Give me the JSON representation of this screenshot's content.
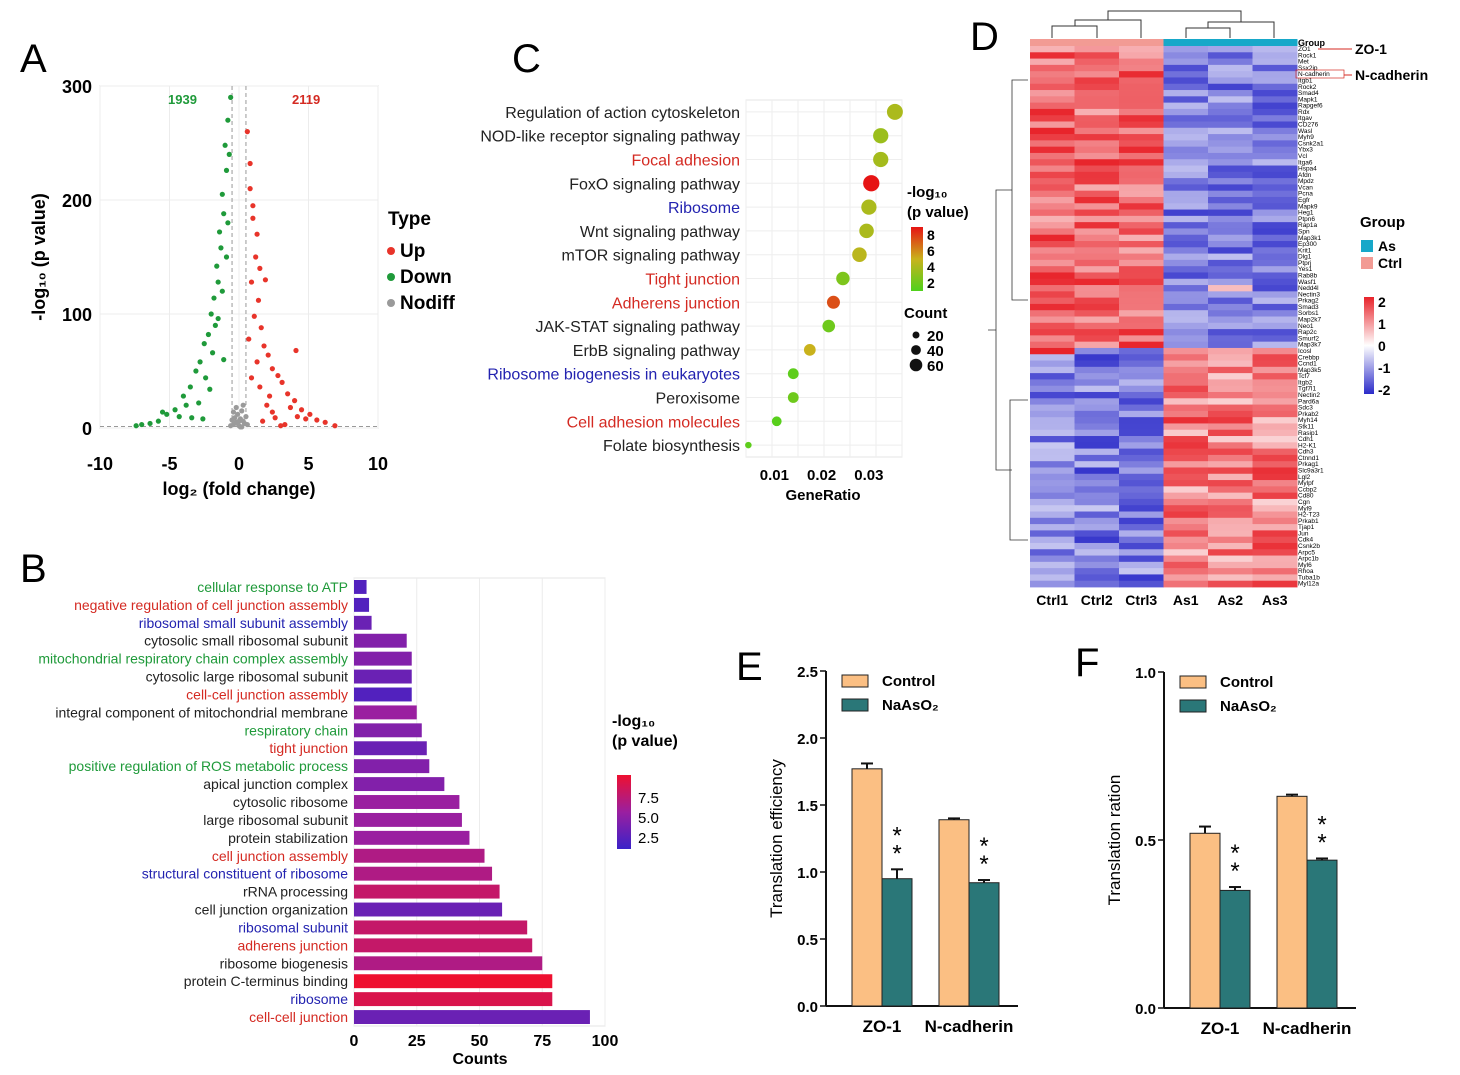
{
  "panels": {
    "A": "A",
    "B": "B",
    "C": "C",
    "D": "D",
    "E": "E",
    "F": "F"
  },
  "chart_data": [
    {
      "id": "A",
      "type": "scatter",
      "xlabel": "log₂ (fold change)",
      "ylabel": "-log₁₀ (p value)",
      "xlim": [
        -10,
        10
      ],
      "ylim": [
        0,
        300
      ],
      "xticks": [
        -10,
        -5,
        0,
        5,
        10
      ],
      "yticks": [
        0,
        100,
        200,
        300
      ],
      "count_labels": {
        "down": "1939",
        "up": "2119"
      },
      "legend": {
        "title": "Type",
        "items": [
          {
            "label": "Up",
            "color": "#e8342a"
          },
          {
            "label": "Down",
            "color": "#1f9a3a"
          },
          {
            "label": "Nodiff",
            "color": "#9a9a9a"
          }
        ]
      },
      "series": [
        {
          "name": "Up",
          "points": [
            [
              0.6,
              260
            ],
            [
              0.8,
              232
            ],
            [
              1.0,
              184
            ],
            [
              1.2,
              150
            ],
            [
              0.9,
              128
            ],
            [
              1.4,
              112
            ],
            [
              1.1,
              98
            ],
            [
              1.6,
              88
            ],
            [
              0.7,
              78
            ],
            [
              1.8,
              72
            ],
            [
              2.1,
              64
            ],
            [
              1.3,
              58
            ],
            [
              2.4,
              52
            ],
            [
              2.8,
              46
            ],
            [
              3.1,
              40
            ],
            [
              1.5,
              36
            ],
            [
              3.5,
              30
            ],
            [
              4.0,
              24
            ],
            [
              2.0,
              20
            ],
            [
              4.5,
              16
            ],
            [
              5.1,
              12
            ],
            [
              2.6,
              9
            ],
            [
              5.6,
              7
            ],
            [
              6.2,
              5
            ],
            [
              3.3,
              3
            ],
            [
              6.9,
              2
            ],
            [
              1.7,
              6
            ],
            [
              4.2,
              10
            ],
            [
              2.2,
              28
            ],
            [
              0.9,
              44
            ],
            [
              1.3,
              170
            ],
            [
              1.9,
              130
            ],
            [
              3.7,
              18
            ],
            [
              4.8,
              8
            ],
            [
              0.8,
              210
            ],
            [
              1.0,
              195
            ],
            [
              1.5,
              140
            ],
            [
              4.1,
              68
            ],
            [
              3.0,
              2
            ],
            [
              2.4,
              14
            ]
          ]
        },
        {
          "name": "Down",
          "points": [
            [
              -0.6,
              290
            ],
            [
              -0.8,
              270
            ],
            [
              -1.0,
              248
            ],
            [
              -0.9,
              226
            ],
            [
              -1.2,
              205
            ],
            [
              -1.1,
              188
            ],
            [
              -1.4,
              172
            ],
            [
              -1.3,
              158
            ],
            [
              -1.6,
              142
            ],
            [
              -1.5,
              128
            ],
            [
              -1.8,
              114
            ],
            [
              -2.0,
              100
            ],
            [
              -1.7,
              90
            ],
            [
              -2.2,
              82
            ],
            [
              -2.5,
              74
            ],
            [
              -1.9,
              66
            ],
            [
              -2.8,
              58
            ],
            [
              -3.1,
              50
            ],
            [
              -2.4,
              44
            ],
            [
              -3.5,
              36
            ],
            [
              -4.0,
              28
            ],
            [
              -2.9,
              22
            ],
            [
              -4.6,
              16
            ],
            [
              -5.2,
              12
            ],
            [
              -3.4,
              9
            ],
            [
              -5.8,
              6
            ],
            [
              -6.4,
              4
            ],
            [
              -7.0,
              3
            ],
            [
              -7.4,
              2
            ],
            [
              -2.1,
              34
            ],
            [
              -1.1,
              60
            ],
            [
              -0.9,
              150
            ],
            [
              -1.5,
              96
            ],
            [
              -0.7,
              240
            ],
            [
              -4.3,
              10
            ],
            [
              -3.8,
              20
            ],
            [
              -2.6,
              8
            ],
            [
              -1.2,
              120
            ],
            [
              -0.8,
              180
            ],
            [
              -5.5,
              14
            ]
          ]
        },
        {
          "name": "Nodiff",
          "points": [
            [
              -0.2,
              5
            ],
            [
              0.1,
              8
            ],
            [
              -0.4,
              3
            ],
            [
              0.3,
              6
            ],
            [
              0.0,
              2
            ],
            [
              -0.1,
              12
            ],
            [
              0.2,
              15
            ],
            [
              -0.3,
              9
            ],
            [
              0.4,
              4
            ],
            [
              -0.5,
              7
            ],
            [
              0.5,
              10
            ],
            [
              0.1,
              1
            ],
            [
              -0.2,
              18
            ],
            [
              0.3,
              20
            ],
            [
              -0.4,
              14
            ],
            [
              0.6,
              3
            ],
            [
              -0.6,
              2
            ],
            [
              0.0,
              6
            ],
            [
              0.2,
              1
            ],
            [
              -0.1,
              4
            ]
          ]
        }
      ]
    },
    {
      "id": "B",
      "type": "bar",
      "orientation": "horizontal",
      "xlabel": "Counts",
      "xlim": [
        0,
        100
      ],
      "xticks": [
        0,
        25,
        50,
        75,
        100
      ],
      "legend": {
        "title": "-log₁₀\n(p value)",
        "ticks": [
          "7.5",
          "5.0",
          "2.5"
        ],
        "range": [
          1,
          9
        ]
      },
      "categories": [
        "cellular response to ATP",
        "negative regulation of cell junction assembly",
        "ribosomal small subunit assembly",
        "cytosolic small ribosomal subunit",
        "mitochondrial respiratory chain complex assembly",
        "cytosolic large ribosomal subunit",
        "cell-cell junction assembly",
        "integral component of mitochondrial membrane",
        "respiratory chain",
        "tight junction",
        "positive regulation of ROS metabolic process",
        "apical junction complex",
        "cytosolic ribosome",
        "large ribosomal subunit",
        "protein stabilization",
        "cell junction assembly",
        "structural constituent of ribosome",
        "rRNA processing",
        "cell junction organization",
        "ribosomal subunit",
        "adherens junction",
        "ribosome biogenesis",
        "protein C-terminus binding",
        "ribosome",
        "cell-cell junction"
      ],
      "label_colors": [
        "green",
        "red",
        "blue",
        "black",
        "green",
        "black",
        "red",
        "black",
        "green",
        "red",
        "green",
        "black",
        "black",
        "black",
        "black",
        "red",
        "blue",
        "black",
        "black",
        "blue",
        "red",
        "black",
        "black",
        "blue",
        "red"
      ],
      "values": [
        5,
        6,
        7,
        21,
        23,
        23,
        23,
        25,
        27,
        29,
        30,
        36,
        42,
        43,
        46,
        52,
        55,
        58,
        59,
        69,
        71,
        75,
        79,
        79,
        94
      ],
      "color_values": [
        2,
        2,
        3,
        4,
        4,
        3,
        2,
        5,
        4,
        3,
        4,
        4,
        5,
        5,
        5,
        6,
        6,
        7,
        3,
        7,
        7,
        6,
        9,
        8,
        3
      ]
    },
    {
      "id": "C",
      "type": "scatter",
      "xlabel": "GeneRatio",
      "xlim": [
        0.004,
        0.037
      ],
      "xticks": [
        0.01,
        0.02,
        0.03
      ],
      "legend_color": {
        "title": "-log₁₀\n(p value)",
        "ticks": [
          "8",
          "6",
          "4",
          "2"
        ],
        "range": [
          1,
          9
        ]
      },
      "legend_size": {
        "title": "Count",
        "items": [
          20,
          40,
          60
        ]
      },
      "categories": [
        "Regulation of action cytoskeleton",
        "NOD-like receptor signaling pathway",
        "Focal adhesion",
        "FoxO signaling pathway",
        "Ribosome",
        "Wnt signaling pathway",
        "mTOR signaling pathway",
        "Tight junction",
        "Adherens junction",
        "JAK-STAT signaling pathway",
        "ErbB signaling pathway",
        "Ribosome biogenesis in eukaryotes",
        "Peroxisome",
        "Cell adhesion molecules",
        "Folate biosynthesis"
      ],
      "label_colors": [
        "black",
        "black",
        "red",
        "black",
        "blue",
        "black",
        "black",
        "red",
        "red",
        "black",
        "black",
        "blue",
        "black",
        "red",
        "black"
      ],
      "x": [
        0.0355,
        0.0325,
        0.0325,
        0.0305,
        0.03,
        0.0295,
        0.028,
        0.0245,
        0.0225,
        0.0215,
        0.0175,
        0.014,
        0.014,
        0.0105,
        0.0045
      ],
      "size": [
        48,
        44,
        44,
        50,
        44,
        40,
        40,
        34,
        32,
        30,
        26,
        22,
        22,
        18,
        8
      ],
      "pvalue": [
        4,
        3.5,
        3.8,
        9,
        4,
        4,
        4.5,
        2.5,
        7.5,
        2,
        5,
        1.5,
        2,
        1.3,
        1.5
      ]
    },
    {
      "id": "D",
      "type": "heatmap",
      "columns": [
        "Ctrl1",
        "Ctrl2",
        "Ctrl3",
        "As1",
        "As2",
        "As3"
      ],
      "group_label": "Group",
      "legend": {
        "title": "Group",
        "items": [
          {
            "label": "As",
            "color": "#17a8c9"
          },
          {
            "label": "Ctrl",
            "color": "#f29b94"
          }
        ],
        "scale_ticks": [
          "2",
          "1",
          "0",
          "-1",
          "-2"
        ]
      },
      "callouts": [
        "ZO-1",
        "N-cadherin"
      ],
      "genes": [
        "Group",
        "ZO1",
        "Rock1",
        "Met",
        "Ssx2ip",
        "N-cadherin",
        "Itgb1",
        "Rock2",
        "Smad4",
        "Mapk1",
        "Rapgef6",
        "Rdx",
        "Itgav",
        "CD276",
        "Wasl",
        "Myh9",
        "Csnk2a1",
        "Ybx3",
        "Vcl",
        "Itga6",
        "Hspa4",
        "Afdn",
        "Mpdz",
        "Vcan",
        "Pcna",
        "Egfr",
        "Mapk9",
        "Heg1",
        "Ptpn6",
        "Rap1a",
        "Spn",
        "Map3k1",
        "Ep300",
        "Krit1",
        "Dlg1",
        "Ptprj",
        "Yes1",
        "Rab8b",
        "Wasf1",
        "Nedd4l",
        "Nectin3",
        "Prkag2",
        "Smad3",
        "Sorbs1",
        "Map2k7",
        "Neo1",
        "Rap2c",
        "Smurf2",
        "Map3k7",
        "Icosl",
        "Crebbp",
        "Ccnd1",
        "Map3k5",
        "Tcf7",
        "Itgb2",
        "Tgf7l1",
        "Nectin2",
        "Pard6a",
        "Sdc3",
        "Prkab2",
        "Myh14",
        "Stk11",
        "Rasip1",
        "Cdh1",
        "H2-K1",
        "Cdh3",
        "Ctnnd1",
        "Prkag1",
        "Slc9a3r1",
        "Lgl2",
        "Mylpf",
        "Ccbp2",
        "Cd80",
        "Cgn",
        "Myl9",
        "H2-T23",
        "Prkab1",
        "Tjap1",
        "Jun",
        "Cdk4",
        "Csnk2b",
        "Arpc5",
        "Arpc1b",
        "Myl6",
        "Rhoa",
        "Tuba1b",
        "Myl12a"
      ],
      "values_description_rows": 87
    },
    {
      "id": "E",
      "type": "bar",
      "ylabel": "Translation efficiency",
      "ylim": [
        0,
        2.5
      ],
      "yticks": [
        "0.0",
        "0.5",
        "1.0",
        "1.5",
        "2.0",
        "2.5"
      ],
      "categories": [
        "ZO-1",
        "N-cadherin"
      ],
      "series": [
        {
          "name": "Control",
          "values": [
            1.77,
            1.39
          ],
          "err": [
            0.04,
            0.01
          ],
          "color": "#fbbf83"
        },
        {
          "name": "NaAsO₂",
          "values": [
            0.95,
            0.92
          ],
          "err": [
            0.07,
            0.02
          ],
          "color": "#2a7778"
        }
      ],
      "sig": [
        "**",
        "**"
      ]
    },
    {
      "id": "F",
      "type": "bar",
      "ylabel": "Translation ration",
      "ylim": [
        0,
        1.0
      ],
      "yticks": [
        "0.0",
        "0.5",
        "1.0"
      ],
      "categories": [
        "ZO-1",
        "N-cadherin"
      ],
      "series": [
        {
          "name": "Control",
          "values": [
            0.52,
            0.63
          ],
          "err": [
            0.02,
            0.005
          ],
          "color": "#fbbf83"
        },
        {
          "name": "NaAsO₂",
          "values": [
            0.35,
            0.44
          ],
          "err": [
            0.01,
            0.005
          ],
          "color": "#2a7778"
        }
      ],
      "sig": [
        "**",
        "**"
      ]
    }
  ]
}
